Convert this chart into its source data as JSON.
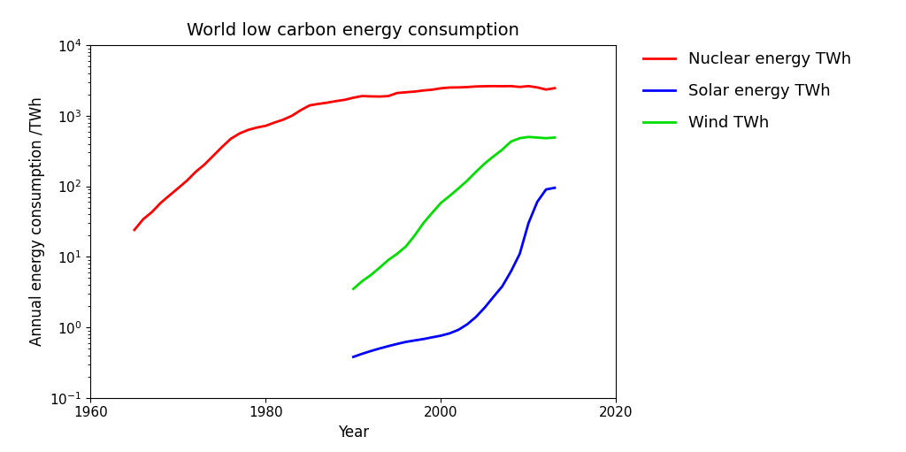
{
  "title": "World low carbon energy consumption",
  "xlabel": "Year",
  "ylabel": "Annual energy consumption /TWh",
  "xlim": [
    1960,
    2020
  ],
  "ylim": [
    0.1,
    10000
  ],
  "nuclear": {
    "years": [
      1965,
      1966,
      1967,
      1968,
      1969,
      1970,
      1971,
      1972,
      1973,
      1974,
      1975,
      1976,
      1977,
      1978,
      1979,
      1980,
      1981,
      1982,
      1983,
      1984,
      1985,
      1986,
      1987,
      1988,
      1989,
      1990,
      1991,
      1992,
      1993,
      1994,
      1995,
      1996,
      1997,
      1998,
      1999,
      2000,
      2001,
      2002,
      2003,
      2004,
      2005,
      2006,
      2007,
      2008,
      2009,
      2010,
      2011,
      2012,
      2013
    ],
    "values": [
      24,
      34,
      43,
      58,
      74,
      94,
      120,
      160,
      203,
      270,
      360,
      470,
      560,
      630,
      680,
      720,
      800,
      880,
      1000,
      1200,
      1400,
      1470,
      1530,
      1610,
      1680,
      1800,
      1900,
      1880,
      1870,
      1900,
      2100,
      2150,
      2200,
      2280,
      2340,
      2450,
      2510,
      2520,
      2550,
      2600,
      2620,
      2630,
      2620,
      2630,
      2560,
      2630,
      2520,
      2350,
      2460
    ],
    "color": "#ff0000",
    "label": "Nuclear energy TWh",
    "linewidth": 2.0
  },
  "solar": {
    "years": [
      1990,
      1991,
      1992,
      1993,
      1994,
      1995,
      1996,
      1997,
      1998,
      1999,
      2000,
      2001,
      2002,
      2003,
      2004,
      2005,
      2006,
      2007,
      2008,
      2009,
      2010,
      2011,
      2012,
      2013
    ],
    "values": [
      0.38,
      0.42,
      0.46,
      0.5,
      0.54,
      0.58,
      0.62,
      0.65,
      0.68,
      0.72,
      0.76,
      0.82,
      0.92,
      1.1,
      1.4,
      1.9,
      2.7,
      3.8,
      6.2,
      11,
      30,
      60,
      90,
      95
    ],
    "color": "#0000ff",
    "label": "Solar energy TWh",
    "linewidth": 2.0
  },
  "wind": {
    "years": [
      1990,
      1991,
      1992,
      1993,
      1994,
      1995,
      1996,
      1997,
      1998,
      1999,
      2000,
      2001,
      2002,
      2003,
      2004,
      2005,
      2006,
      2007,
      2008,
      2009,
      2010,
      2011,
      2012,
      2013
    ],
    "values": [
      3.5,
      4.5,
      5.5,
      7.0,
      9.0,
      11,
      14,
      20,
      30,
      42,
      58,
      73,
      93,
      120,
      160,
      210,
      265,
      330,
      430,
      480,
      500,
      490,
      480,
      490
    ],
    "color": "#00dd00",
    "label": "Wind TWh",
    "linewidth": 2.0
  },
  "background_color": "#ffffff",
  "title_fontsize": 14,
  "label_fontsize": 12,
  "tick_fontsize": 11,
  "legend_fontsize": 13
}
